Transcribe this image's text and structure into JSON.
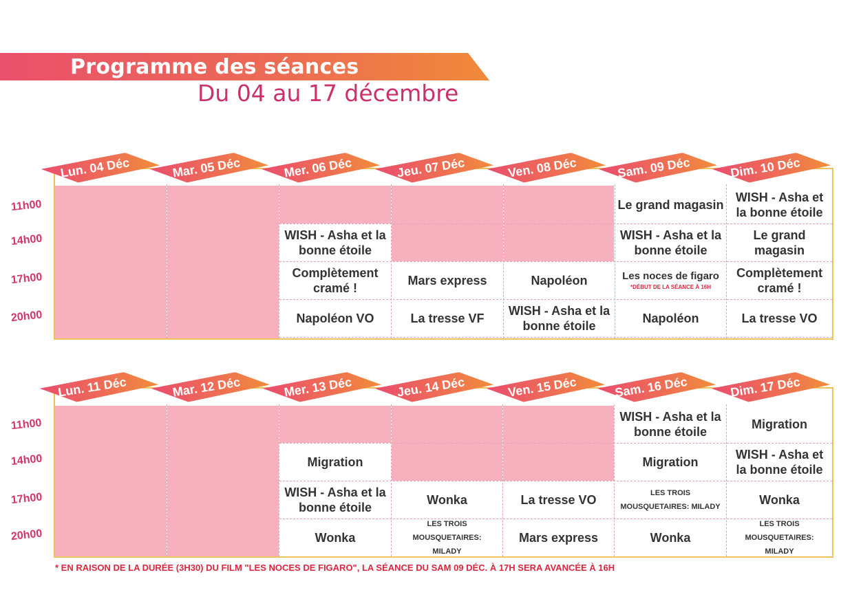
{
  "header": {
    "title": "Programme des séances",
    "subtitle": "Du 04 au 17 décembre"
  },
  "times": [
    "11h00",
    "14h00",
    "17h00",
    "20h00"
  ],
  "week1": {
    "days": [
      "Lun. 04 Déc",
      "Mar. 05 Déc",
      "Mer. 06 Déc",
      "Jeu. 07 Déc",
      "Ven. 08 Déc",
      "Sam. 09 Déc",
      "Dim. 10 Déc"
    ],
    "sessions": {
      "wed_14": "WISH - Asha et la bonne étoile",
      "wed_17": "Complètement cramé !",
      "wed_20": "Napoléon VO",
      "thu_17": "Mars express",
      "thu_20": "La tresse VF",
      "fri_17": "Napoléon",
      "fri_20": "WISH - Asha et la bonne étoile",
      "sat_11": "Le grand magasin",
      "sat_14": "WISH - Asha et la bonne étoile",
      "sat_17": "Les noces de figaro",
      "sat_17_note": "*DÉBUT DE LA SÉANCE À 16H",
      "sat_20": "Napoléon",
      "sun_11": "WISH - Asha et la bonne étoile",
      "sun_14": "Le grand magasin",
      "sun_17": "Complètement cramé !",
      "sun_20": "La tresse VO"
    }
  },
  "week2": {
    "days": [
      "Lun. 11 Déc",
      "Mar. 12 Déc",
      "Mer. 13 Déc",
      "Jeu. 14 Déc",
      "Ven. 15 Déc",
      "Sam. 16 Déc",
      "Dim. 17 Déc"
    ],
    "sessions": {
      "wed_14": "Migration",
      "wed_17": "WISH - Asha et la bonne étoile",
      "wed_20": "Wonka",
      "thu_17": "Wonka",
      "thu_20": "LES TROIS MOUSQUETAIRES: MILADY",
      "fri_17": "La tresse VO",
      "fri_20": "Mars express",
      "sat_11": "WISH - Asha et la bonne étoile",
      "sat_14": "Migration",
      "sat_17": "LES TROIS MOUSQUETAIRES: MILADY",
      "sat_20": "Wonka",
      "sun_11": "Migration",
      "sun_14": "WISH - Asha et la bonne étoile",
      "sun_17": "Wonka",
      "sun_20": "LES TROIS MOUSQUETAIRES: MILADY"
    }
  },
  "footnote": "* EN RAISON DE LA DURÉE (3H30) DU FILM \"LES NOCES DE FIGARO\", LA SÉANCE DU SAM 09 DÉC. À 17H SERA AVANCÉE À 16H",
  "colors": {
    "accent_pink": "#e9506b",
    "accent_orange": "#f08a3a",
    "closed_fill": "#f7b0bd",
    "time_label": "#d23567",
    "frame": "#f0c35a"
  }
}
